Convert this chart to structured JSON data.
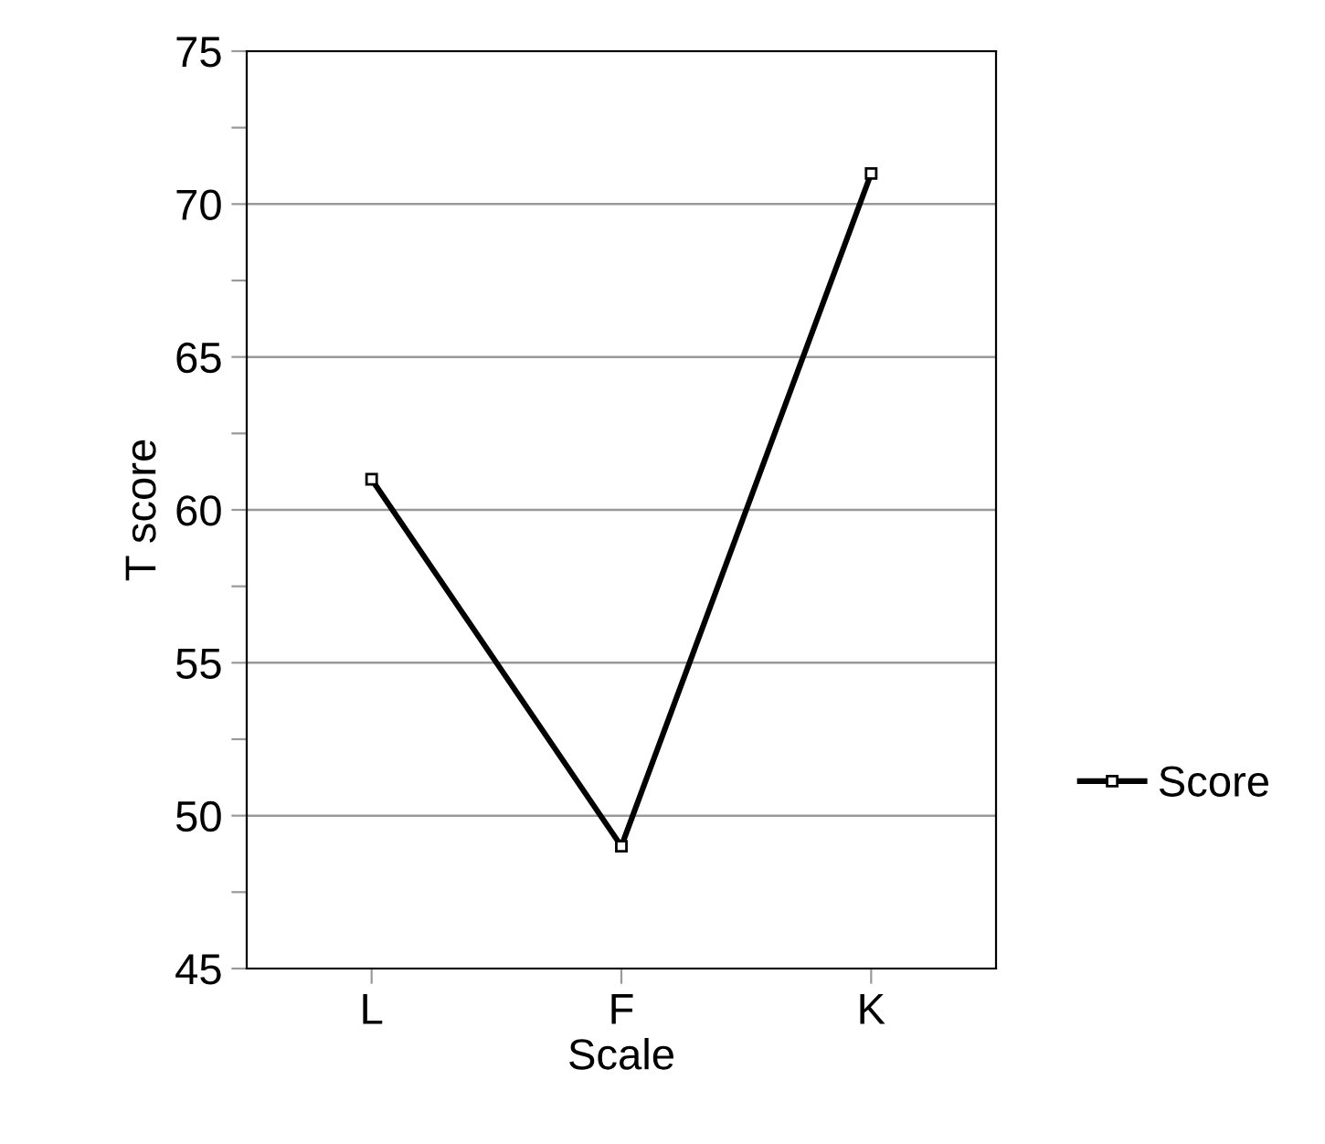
{
  "chart_data": {
    "type": "line",
    "xlabel": "Scale",
    "ylabel": "T score",
    "categories": [
      "L",
      "F",
      "K"
    ],
    "series": [
      {
        "name": "Score",
        "color": "#000000",
        "values": [
          61,
          49,
          71
        ]
      }
    ],
    "ylim": [
      45,
      75
    ],
    "yticks": [
      45,
      {
        "value": 47.5,
        "label": null
      },
      50,
      {
        "value": 52.5,
        "label": null
      },
      55,
      {
        "value": 57.5,
        "label": null
      },
      60,
      {
        "value": 62.5,
        "label": null
      },
      65,
      {
        "value": 67.5,
        "label": null
      },
      70,
      {
        "value": 72.5,
        "label": null
      },
      75
    ],
    "grid": "y",
    "legend": "right",
    "marker": "square",
    "line_style": "solid"
  }
}
